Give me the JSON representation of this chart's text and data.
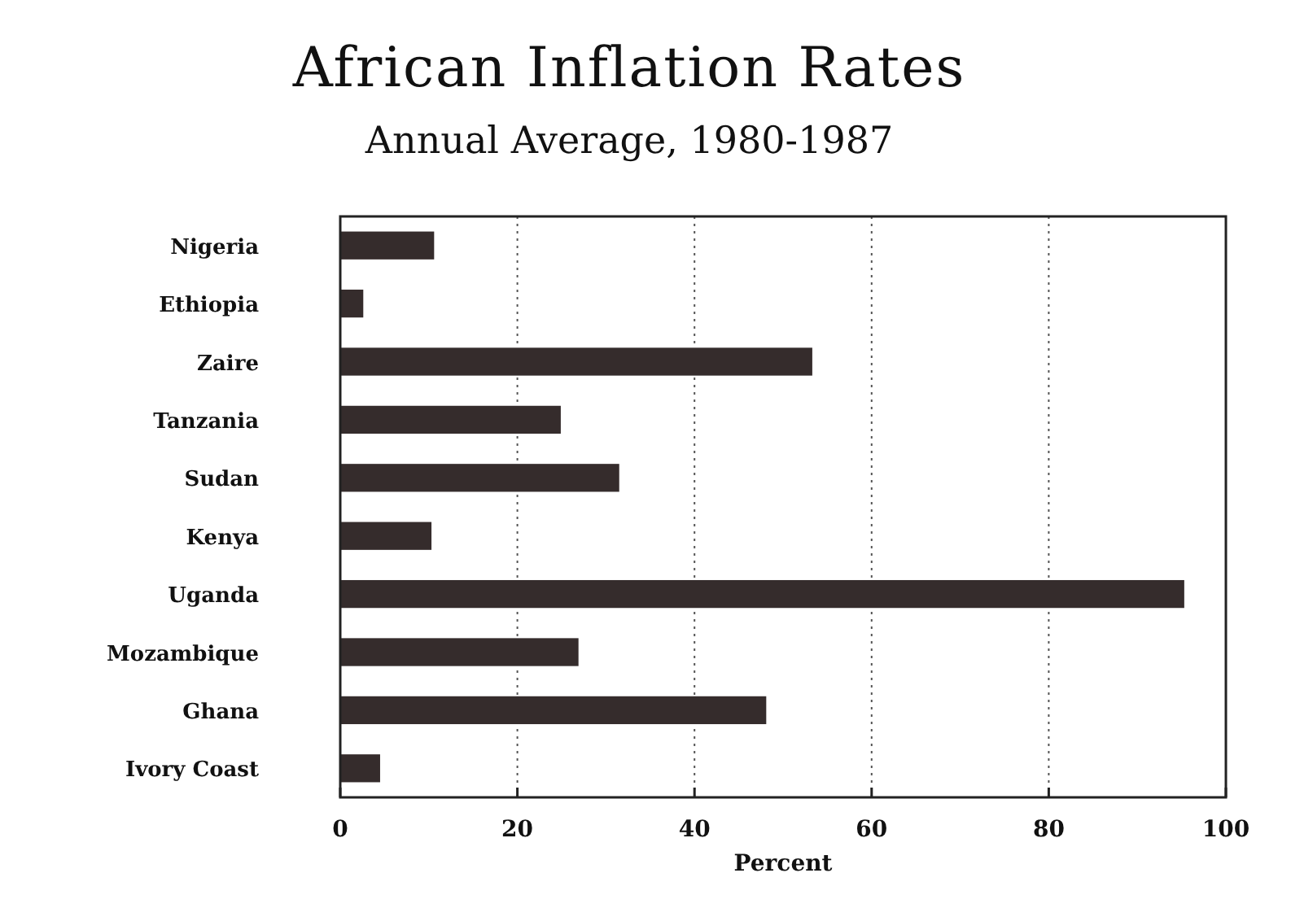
{
  "chart_data": {
    "type": "bar",
    "orientation": "horizontal",
    "title": "African Inflation Rates",
    "subtitle": "Annual Average, 1980-1987",
    "xlabel": "Percent",
    "categories": [
      "Nigeria",
      "Ethiopia",
      "Zaire",
      "Tanzania",
      "Sudan",
      "Kenya",
      "Uganda",
      "Mozambique",
      "Ghana",
      "Ivory Coast"
    ],
    "values": [
      10.6,
      2.6,
      53.3,
      24.9,
      31.5,
      10.3,
      95.3,
      26.9,
      48.1,
      4.5
    ],
    "color": "#352c2c",
    "xlim": [
      0,
      100
    ],
    "xticks": [
      0,
      20,
      40,
      60,
      80,
      100
    ],
    "grid": "x"
  }
}
